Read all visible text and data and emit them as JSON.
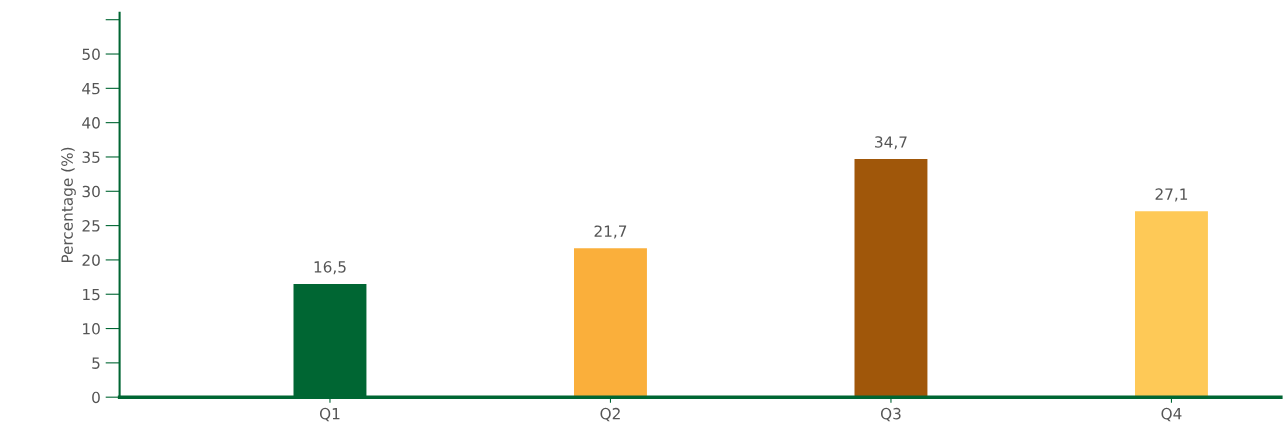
{
  "chart_data": {
    "type": "bar",
    "ylabel": "Percentage (%)",
    "categories": [
      "Q1",
      "Q2",
      "Q3",
      "Q4"
    ],
    "values": [
      16.5,
      21.7,
      34.7,
      27.1
    ],
    "value_labels": [
      "16,5",
      "21,7",
      "34,7",
      "27,1"
    ],
    "colors": [
      "#006633",
      "#faaf3b",
      "#a0570a",
      "#fec957"
    ],
    "ylim": [
      0,
      56
    ],
    "yticks": [
      0,
      5,
      10,
      15,
      20,
      25,
      30,
      35,
      40,
      45,
      50,
      {
        "value": 55,
        "label": null
      }
    ],
    "grid": false,
    "legend": false
  }
}
